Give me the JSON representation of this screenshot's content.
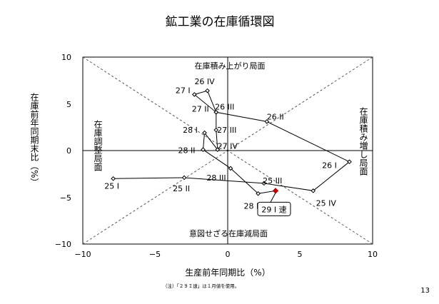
{
  "chart_data": {
    "type": "scatter",
    "title": "鉱工業の在庫循環図",
    "xlabel": "生産前年同期比（%）",
    "ylabel": "在庫前年同期末比（%）",
    "xlim": [
      -10,
      10
    ],
    "ylim": [
      -10,
      10
    ],
    "xticks": [
      "−10",
      "−5",
      "0",
      "5",
      "10"
    ],
    "yticks": [
      "10",
      "5",
      "0",
      "−5",
      "−10"
    ],
    "grid": false,
    "quadrant_labels": {
      "top": "在庫積み上がり局面",
      "bottom": "意図せざる在庫減局面",
      "left": "在庫調整局面",
      "right": "在庫積み増し局面"
    },
    "series": [
      {
        "points": [
          {
            "label": "25 I",
            "x": -7.9,
            "y": -3.0
          },
          {
            "label": "25 II",
            "x": -3.0,
            "y": -2.9
          },
          {
            "label": "25 III",
            "x": 2.5,
            "y": -3.5
          },
          {
            "label": "25 IV",
            "x": 5.9,
            "y": -4.3
          },
          {
            "label": "26 I",
            "x": 8.4,
            "y": -1.2
          },
          {
            "label": "26 II",
            "x": 2.7,
            "y": 3.1
          },
          {
            "label": "26 III",
            "x": -0.8,
            "y": 4.1
          },
          {
            "label": "26 IV",
            "x": -1.4,
            "y": 6.4
          },
          {
            "label": "27 I",
            "x": -2.3,
            "y": 6.0
          },
          {
            "label": "27 II",
            "x": -0.8,
            "y": 4.1
          },
          {
            "label": "27 III",
            "x": -0.8,
            "y": 2.2
          },
          {
            "label": "27 IV",
            "x": -0.7,
            "y": 0.1
          },
          {
            "label": "28 I",
            "x": -1.6,
            "y": 1.9
          },
          {
            "label": "28 II",
            "x": -1.7,
            "y": 0.1
          },
          {
            "label": "28 III",
            "x": 0.2,
            "y": -1.9
          },
          {
            "label": "28 IV",
            "x": 2.1,
            "y": -4.6
          }
        ]
      },
      {
        "points": [
          {
            "label": "29 I 速",
            "x": 3.3,
            "y": -4.3
          }
        ]
      }
    ],
    "footnote": "（注）「２９Ｉ速」は１月値を使用。"
  },
  "page_number": "13",
  "colors": {
    "line": "#000000",
    "flash_marker": "#c00000",
    "diagonal": "#555555"
  }
}
